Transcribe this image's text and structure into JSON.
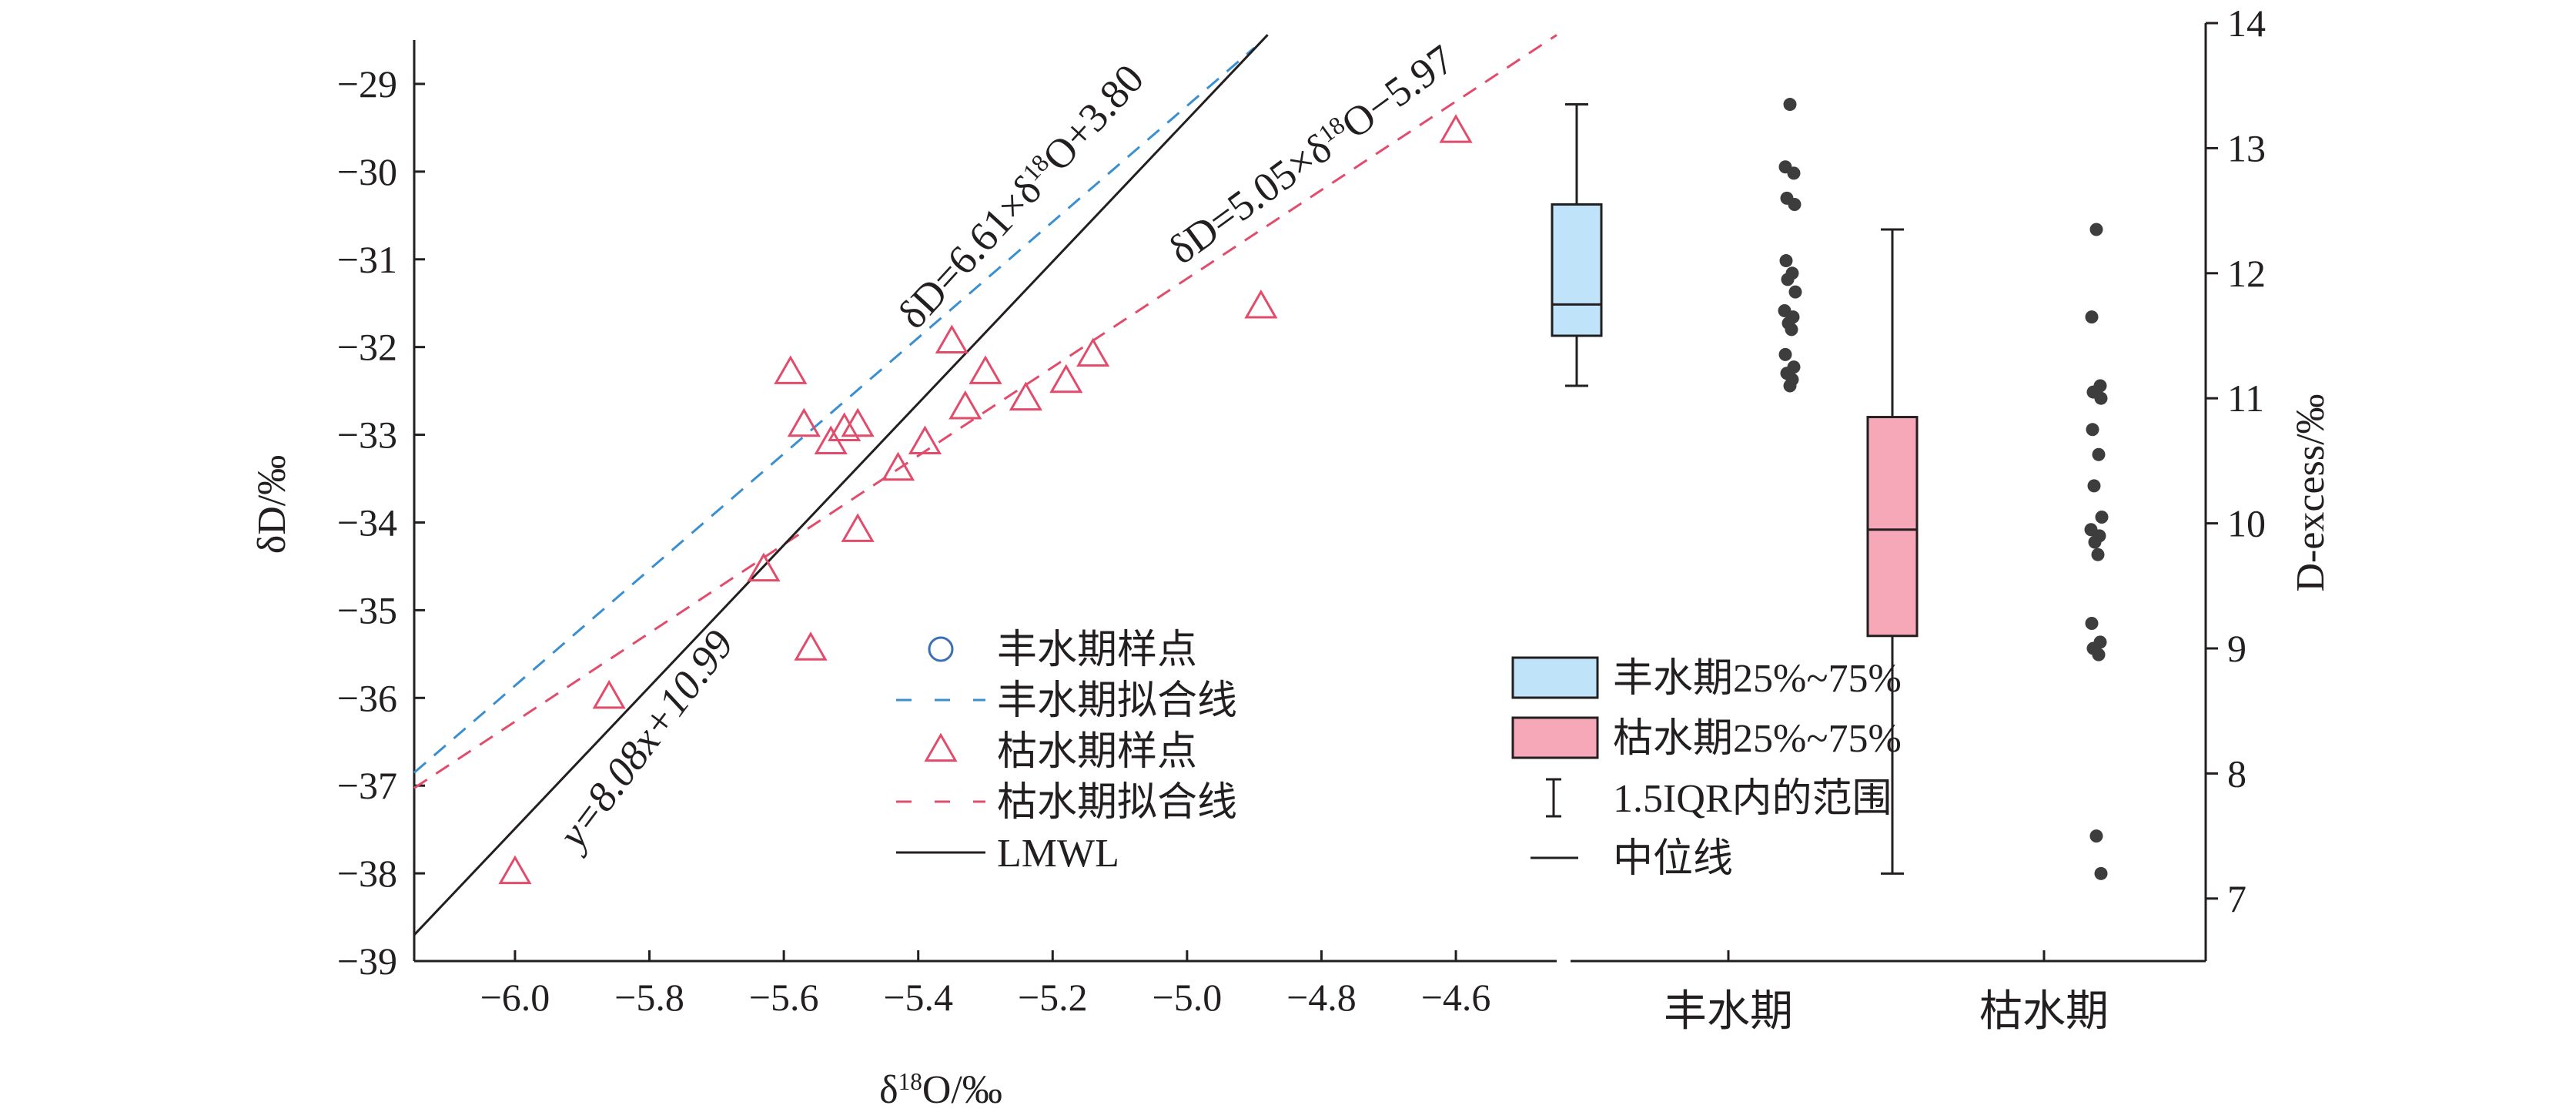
{
  "chart_data": {
    "type": "scatter",
    "left_panel": {
      "title": "",
      "xlabel": "δ18O/‰",
      "ylabel": "δD/‰",
      "xlim": [
        -6.15,
        -4.45
      ],
      "ylim": [
        -39,
        -28.5
      ],
      "x_ticks": [
        -6.0,
        -5.8,
        -5.6,
        -5.4,
        -5.2,
        -5.0,
        -4.8,
        -4.6
      ],
      "x_tick_labels": [
        "−6.0",
        "−5.8",
        "−5.6",
        "−5.4",
        "−5.2",
        "−5.0",
        "−4.8",
        "−4.6"
      ],
      "y_ticks": [
        -39,
        -38,
        -37,
        -36,
        -35,
        -34,
        -33,
        -32,
        -31,
        -30,
        -29
      ],
      "y_tick_labels": [
        "−39",
        "−38",
        "−37",
        "−36",
        "−35",
        "−34",
        "−33",
        "−32",
        "−31",
        "−30",
        "−29"
      ],
      "series": [
        {
          "name": "枯水期样点",
          "kind": "triangle",
          "color": "#e24c6b",
          "points": [
            [
              -6.0,
              -38.0
            ],
            [
              -5.86,
              -36.0
            ],
            [
              -5.63,
              -34.55
            ],
            [
              -5.59,
              -32.3
            ],
            [
              -5.57,
              -32.9
            ],
            [
              -5.56,
              -35.45
            ],
            [
              -5.53,
              -33.1
            ],
            [
              -5.51,
              -32.95
            ],
            [
              -5.49,
              -32.9
            ],
            [
              -5.49,
              -34.1
            ],
            [
              -5.43,
              -33.4
            ],
            [
              -5.39,
              -33.1
            ],
            [
              -5.35,
              -31.95
            ],
            [
              -5.33,
              -32.7
            ],
            [
              -5.3,
              -32.3
            ],
            [
              -5.24,
              -32.6
            ],
            [
              -5.18,
              -32.4
            ],
            [
              -5.14,
              -32.1
            ],
            [
              -4.89,
              -31.55
            ],
            [
              -4.6,
              -29.55
            ]
          ]
        },
        {
          "name": "丰水期拟合线",
          "kind": "dashed-line",
          "color": "#3a8fd0",
          "slope": 6.61,
          "intercept": 3.8,
          "x_range": [
            -6.15,
            -4.9
          ]
        },
        {
          "name": "枯水期拟合线",
          "kind": "dashed-line",
          "color": "#e24c6b",
          "slope": 5.05,
          "intercept": -5.97,
          "x_range": [
            -6.15,
            -4.45
          ]
        },
        {
          "name": "LMWL",
          "kind": "line",
          "color": "#231f20",
          "slope": 8.08,
          "intercept": 10.99,
          "x_range": [
            -6.15,
            -4.88
          ]
        }
      ],
      "annotations": {
        "wet_eq": "δD=6.61×δ18O+3.80",
        "dry_eq": "δD=5.05×δ18O−5.97",
        "lmwl_eq": "y=8.08x+10.99"
      }
    },
    "right_panel": {
      "type": "box",
      "ylabel": "D-excess/‰",
      "ylim": [
        6.5,
        14
      ],
      "y_ticks": [
        7,
        8,
        9,
        10,
        11,
        12,
        13,
        14
      ],
      "y_tick_labels": [
        "7",
        "8",
        "9",
        "10",
        "11",
        "12",
        "13",
        "14"
      ],
      "categories": [
        "丰水期",
        "枯水期"
      ],
      "boxes": [
        {
          "name": "丰水期",
          "fill": "#bfe3f8",
          "whisker_low": 11.1,
          "q1": 11.5,
          "median": 11.75,
          "q3": 12.55,
          "whisker_high": 13.35,
          "points": [
            13.35,
            12.85,
            12.8,
            12.6,
            12.55,
            12.1,
            12.0,
            11.95,
            11.85,
            11.7,
            11.65,
            11.6,
            11.55,
            11.35,
            11.25,
            11.2,
            11.15,
            11.1
          ]
        },
        {
          "name": "枯水期",
          "fill": "#f7a8b8",
          "whisker_low": 7.2,
          "q1": 9.1,
          "median": 9.95,
          "q3": 10.85,
          "whisker_high": 12.35,
          "points": [
            12.35,
            11.65,
            11.1,
            11.05,
            11.0,
            10.75,
            10.55,
            10.3,
            10.05,
            9.95,
            9.9,
            9.85,
            9.75,
            9.2,
            9.05,
            9.0,
            8.95,
            7.5,
            7.2
          ]
        }
      ]
    },
    "legend_left": [
      {
        "kind": "circle",
        "label": "丰水期样点",
        "color": "#3a6fb5"
      },
      {
        "kind": "dash",
        "label": "丰水期拟合线",
        "color": "#3a8fd0"
      },
      {
        "kind": "triangle",
        "label": "枯水期样点",
        "color": "#e24c6b"
      },
      {
        "kind": "dash",
        "label": "枯水期拟合线",
        "color": "#e24c6b"
      },
      {
        "kind": "solid",
        "label": "LMWL",
        "color": "#231f20"
      }
    ],
    "legend_right": [
      {
        "kind": "box",
        "label": "丰水期25%~75%",
        "fill": "#bfe3f8"
      },
      {
        "kind": "box",
        "label": "枯水期25%~75%",
        "fill": "#f7a8b8"
      },
      {
        "kind": "whisker",
        "label": "1.5IQR内的范围"
      },
      {
        "kind": "median",
        "label": "中位线"
      }
    ]
  }
}
